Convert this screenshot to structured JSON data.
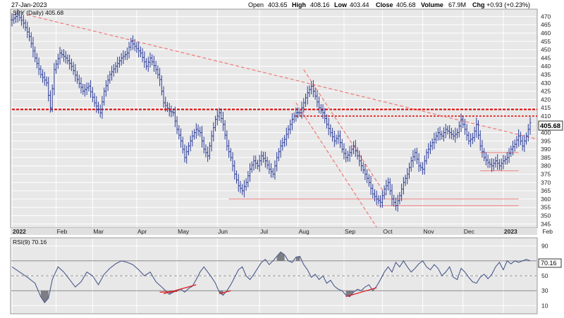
{
  "header": {
    "date": "27-Jan-2023",
    "open_label": "Open",
    "open": "403.65",
    "high_label": "High",
    "high": "408.16",
    "low_label": "Low",
    "low": "403.44",
    "close_label": "Close",
    "close": "405.68",
    "volume_label": "Volume",
    "volume": "67.9M",
    "chg_label": "Chg",
    "chg": "+0.93 (+0.23%)"
  },
  "colors": {
    "price_bars": "#2b3d9a",
    "panel_bg": "#e8e8e8",
    "grid": "#ffffff",
    "resistance": "#dd0000",
    "trend": "#f08080",
    "rsi_line": "#4a5a8c",
    "rsi_fill": "#6a6a72"
  },
  "chart_data": [
    {
      "type": "ohlc",
      "legend": "SPY (Daily) 405.68",
      "last_value": "405.68",
      "ylim": [
        343,
        474
      ],
      "y_ticks": [
        345,
        350,
        355,
        360,
        365,
        370,
        375,
        380,
        385,
        390,
        395,
        400,
        405,
        410,
        415,
        420,
        425,
        430,
        435,
        440,
        445,
        450,
        455,
        460,
        465,
        470
      ],
      "x_range": [
        0,
        270
      ],
      "x_ticks": [
        {
          "label": "2022",
          "x": 0,
          "bold": true
        },
        {
          "label": "Feb",
          "x": 23
        },
        {
          "label": "Mar",
          "x": 42
        },
        {
          "label": "Apr",
          "x": 65
        },
        {
          "label": "May",
          "x": 86
        },
        {
          "label": "Jun",
          "x": 107
        },
        {
          "label": "Jul",
          "x": 129
        },
        {
          "label": "Aug",
          "x": 149
        },
        {
          "label": "Sep",
          "x": 173
        },
        {
          "label": "Oct",
          "x": 193
        },
        {
          "label": "Nov",
          "x": 214
        },
        {
          "label": "Dec",
          "x": 235
        },
        {
          "label": "2023",
          "x": 256,
          "bold": true
        },
        {
          "label": "Feb",
          "x": 276
        }
      ],
      "close_path": [
        [
          0,
          468
        ],
        [
          3,
          471
        ],
        [
          6,
          466
        ],
        [
          9,
          458
        ],
        [
          12,
          445
        ],
        [
          15,
          435
        ],
        [
          18,
          430
        ],
        [
          20,
          415
        ],
        [
          22,
          438
        ],
        [
          25,
          448
        ],
        [
          28,
          445
        ],
        [
          31,
          440
        ],
        [
          34,
          432
        ],
        [
          37,
          425
        ],
        [
          40,
          428
        ],
        [
          43,
          418
        ],
        [
          46,
          412
        ],
        [
          48,
          425
        ],
        [
          51,
          435
        ],
        [
          54,
          440
        ],
        [
          57,
          445
        ],
        [
          60,
          448
        ],
        [
          62,
          455
        ],
        [
          64,
          452
        ],
        [
          67,
          448
        ],
        [
          70,
          440
        ],
        [
          72,
          445
        ],
        [
          75,
          438
        ],
        [
          77,
          432
        ],
        [
          79,
          418
        ],
        [
          82,
          413
        ],
        [
          84,
          412
        ],
        [
          86,
          402
        ],
        [
          88,
          395
        ],
        [
          90,
          385
        ],
        [
          92,
          392
        ],
        [
          94,
          398
        ],
        [
          96,
          402
        ],
        [
          98,
          400
        ],
        [
          100,
          390
        ],
        [
          102,
          386
        ],
        [
          104,
          398
        ],
        [
          106,
          408
        ],
        [
          108,
          412
        ],
        [
          110,
          405
        ],
        [
          112,
          392
        ],
        [
          114,
          385
        ],
        [
          116,
          375
        ],
        [
          118,
          368
        ],
        [
          120,
          365
        ],
        [
          122,
          370
        ],
        [
          124,
          378
        ],
        [
          126,
          383
        ],
        [
          128,
          380
        ],
        [
          130,
          386
        ],
        [
          132,
          383
        ],
        [
          134,
          378
        ],
        [
          136,
          375
        ],
        [
          138,
          385
        ],
        [
          140,
          392
        ],
        [
          142,
          396
        ],
        [
          144,
          402
        ],
        [
          146,
          408
        ],
        [
          148,
          412
        ],
        [
          150,
          412
        ],
        [
          152,
          418
        ],
        [
          154,
          424
        ],
        [
          156,
          428
        ],
        [
          158,
          422
        ],
        [
          160,
          415
        ],
        [
          162,
          412
        ],
        [
          164,
          405
        ],
        [
          166,
          400
        ],
        [
          168,
          395
        ],
        [
          170,
          398
        ],
        [
          172,
          390
        ],
        [
          174,
          385
        ],
        [
          176,
          388
        ],
        [
          178,
          392
        ],
        [
          180,
          386
        ],
        [
          182,
          380
        ],
        [
          184,
          375
        ],
        [
          186,
          370
        ],
        [
          188,
          363
        ],
        [
          190,
          360
        ],
        [
          192,
          358
        ],
        [
          194,
          366
        ],
        [
          196,
          370
        ],
        [
          198,
          360
        ],
        [
          200,
          356
        ],
        [
          202,
          362
        ],
        [
          204,
          370
        ],
        [
          206,
          375
        ],
        [
          208,
          383
        ],
        [
          210,
          388
        ],
        [
          212,
          380
        ],
        [
          214,
          378
        ],
        [
          216,
          388
        ],
        [
          218,
          392
        ],
        [
          220,
          396
        ],
        [
          222,
          400
        ],
        [
          224,
          398
        ],
        [
          226,
          402
        ],
        [
          228,
          400
        ],
        [
          230,
          398
        ],
        [
          232,
          400
        ],
        [
          234,
          408
        ],
        [
          236,
          402
        ],
        [
          238,
          395
        ],
        [
          240,
          397
        ],
        [
          242,
          405
        ],
        [
          244,
          392
        ],
        [
          246,
          385
        ],
        [
          248,
          382
        ],
        [
          250,
          380
        ],
        [
          252,
          383
        ],
        [
          254,
          380
        ],
        [
          256,
          383
        ],
        [
          258,
          385
        ],
        [
          260,
          390
        ],
        [
          262,
          393
        ],
        [
          264,
          398
        ],
        [
          266,
          392
        ],
        [
          268,
          398
        ],
        [
          270,
          406
        ]
      ],
      "resistance_line_solid": {
        "y": 414,
        "x0": 0,
        "x1": 270
      },
      "resistance_line_dashed": {
        "y": 410,
        "x0": 148,
        "x1": 270
      },
      "trendlines": [
        {
          "x0": 8,
          "y0": 471,
          "x1": 274,
          "y1": 396
        },
        {
          "x0": 152,
          "y0": 438,
          "x1": 195,
          "y1": 362
        },
        {
          "x0": 148,
          "y0": 418,
          "x1": 190,
          "y1": 343
        }
      ],
      "horizontal_lines": [
        {
          "y": 360,
          "x0": 113,
          "x1": 264
        },
        {
          "y": 356,
          "x0": 190,
          "x1": 264
        },
        {
          "y": 388,
          "x0": 244,
          "x1": 264
        },
        {
          "y": 377,
          "x0": 244,
          "x1": 264
        }
      ]
    },
    {
      "type": "line",
      "legend": "RSI(9) 70.16",
      "last_value": "70.16",
      "ylim": [
        0,
        100
      ],
      "y_ticks": [
        10,
        30,
        50,
        70,
        90
      ],
      "overbought": 70,
      "oversold": 30,
      "values": [
        [
          0,
          62
        ],
        [
          4,
          55
        ],
        [
          8,
          48
        ],
        [
          12,
          40
        ],
        [
          15,
          22
        ],
        [
          17,
          14
        ],
        [
          19,
          20
        ],
        [
          21,
          45
        ],
        [
          24,
          62
        ],
        [
          27,
          55
        ],
        [
          30,
          45
        ],
        [
          33,
          35
        ],
        [
          36,
          42
        ],
        [
          39,
          55
        ],
        [
          42,
          50
        ],
        [
          45,
          38
        ],
        [
          48,
          52
        ],
        [
          51,
          60
        ],
        [
          54,
          66
        ],
        [
          57,
          70
        ],
        [
          60,
          68
        ],
        [
          63,
          65
        ],
        [
          66,
          58
        ],
        [
          69,
          50
        ],
        [
          72,
          55
        ],
        [
          75,
          42
        ],
        [
          78,
          35
        ],
        [
          80,
          30
        ],
        [
          82,
          25
        ],
        [
          84,
          28
        ],
        [
          86,
          30
        ],
        [
          88,
          32
        ],
        [
          90,
          28
        ],
        [
          92,
          33
        ],
        [
          94,
          36
        ],
        [
          96,
          45
        ],
        [
          98,
          55
        ],
        [
          100,
          62
        ],
        [
          102,
          55
        ],
        [
          104,
          48
        ],
        [
          106,
          40
        ],
        [
          108,
          28
        ],
        [
          110,
          24
        ],
        [
          112,
          30
        ],
        [
          114,
          38
        ],
        [
          116,
          48
        ],
        [
          118,
          58
        ],
        [
          120,
          62
        ],
        [
          122,
          50
        ],
        [
          124,
          45
        ],
        [
          126,
          52
        ],
        [
          128,
          60
        ],
        [
          130,
          68
        ],
        [
          132,
          72
        ],
        [
          134,
          65
        ],
        [
          136,
          70
        ],
        [
          138,
          76
        ],
        [
          140,
          82
        ],
        [
          142,
          78
        ],
        [
          144,
          70
        ],
        [
          146,
          68
        ],
        [
          148,
          75
        ],
        [
          150,
          76
        ],
        [
          152,
          65
        ],
        [
          154,
          58
        ],
        [
          156,
          48
        ],
        [
          158,
          52
        ],
        [
          160,
          45
        ],
        [
          162,
          50
        ],
        [
          164,
          40
        ],
        [
          166,
          44
        ],
        [
          168,
          36
        ],
        [
          170,
          32
        ],
        [
          172,
          30
        ],
        [
          174,
          24
        ],
        [
          176,
          22
        ],
        [
          178,
          28
        ],
        [
          180,
          32
        ],
        [
          182,
          30
        ],
        [
          184,
          35
        ],
        [
          186,
          38
        ],
        [
          188,
          30
        ],
        [
          190,
          36
        ],
        [
          192,
          45
        ],
        [
          194,
          55
        ],
        [
          196,
          62
        ],
        [
          198,
          55
        ],
        [
          200,
          68
        ],
        [
          202,
          62
        ],
        [
          204,
          70
        ],
        [
          206,
          62
        ],
        [
          208,
          55
        ],
        [
          210,
          60
        ],
        [
          212,
          66
        ],
        [
          214,
          70
        ],
        [
          216,
          62
        ],
        [
          218,
          58
        ],
        [
          220,
          65
        ],
        [
          222,
          60
        ],
        [
          224,
          50
        ],
        [
          226,
          55
        ],
        [
          228,
          62
        ],
        [
          230,
          48
        ],
        [
          232,
          45
        ],
        [
          234,
          60
        ],
        [
          236,
          55
        ],
        [
          238,
          48
        ],
        [
          240,
          42
        ],
        [
          242,
          40
        ],
        [
          244,
          48
        ],
        [
          246,
          52
        ],
        [
          248,
          46
        ],
        [
          250,
          52
        ],
        [
          252,
          62
        ],
        [
          254,
          68
        ],
        [
          256,
          58
        ],
        [
          258,
          70
        ],
        [
          260,
          66
        ],
        [
          262,
          70
        ],
        [
          264,
          68
        ],
        [
          266,
          70
        ],
        [
          268,
          72
        ],
        [
          270,
          70
        ]
      ],
      "divergence_lines": [
        {
          "x0": 79,
          "y0": 26,
          "x1": 96,
          "y1": 38
        },
        {
          "x0": 77,
          "y0": 28,
          "x1": 86,
          "y1": 29
        },
        {
          "x0": 108,
          "y0": 26,
          "x1": 114,
          "y1": 30
        },
        {
          "x0": 174,
          "y0": 22,
          "x1": 190,
          "y1": 34
        }
      ]
    }
  ]
}
